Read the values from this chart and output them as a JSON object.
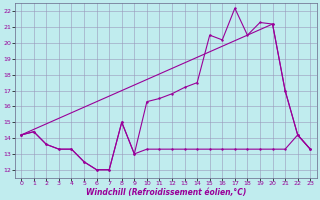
{
  "xlabel": "Windchill (Refroidissement éolien,°C)",
  "xlim": [
    -0.5,
    23.5
  ],
  "ylim": [
    11.5,
    22.5
  ],
  "yticks": [
    12,
    13,
    14,
    15,
    16,
    17,
    18,
    19,
    20,
    21,
    22
  ],
  "xticks": [
    0,
    1,
    2,
    3,
    4,
    5,
    6,
    7,
    8,
    9,
    10,
    11,
    12,
    13,
    14,
    15,
    16,
    17,
    18,
    19,
    20,
    21,
    22,
    23
  ],
  "background_color": "#c0ecee",
  "grid_color": "#9999bb",
  "line_color": "#990099",
  "series1_x": [
    0,
    1,
    2,
    3,
    4,
    5,
    6,
    7,
    8,
    9,
    10,
    11,
    12,
    13,
    14,
    15,
    16,
    17,
    18,
    19,
    20,
    21,
    22,
    23
  ],
  "series1_y": [
    14.2,
    14.4,
    13.6,
    13.3,
    13.3,
    12.5,
    12.0,
    12.0,
    15.0,
    13.0,
    13.3,
    13.3,
    13.3,
    13.3,
    13.3,
    13.3,
    13.3,
    13.3,
    13.3,
    13.3,
    13.3,
    13.3,
    14.2,
    13.3
  ],
  "series2_x": [
    0,
    1,
    2,
    3,
    4,
    5,
    6,
    7,
    8,
    9,
    10,
    11,
    12,
    13,
    14,
    15,
    16,
    17,
    18,
    19,
    20,
    21,
    22,
    23
  ],
  "series2_y": [
    14.2,
    14.4,
    13.6,
    13.3,
    13.3,
    12.5,
    12.0,
    12.0,
    15.0,
    13.0,
    16.3,
    16.5,
    16.8,
    17.2,
    17.5,
    20.5,
    20.2,
    22.2,
    20.5,
    21.3,
    21.2,
    17.0,
    14.2,
    13.3
  ],
  "series3_x": [
    0,
    20,
    21,
    22,
    23
  ],
  "series3_y": [
    14.2,
    21.2,
    17.0,
    14.2,
    13.3
  ]
}
